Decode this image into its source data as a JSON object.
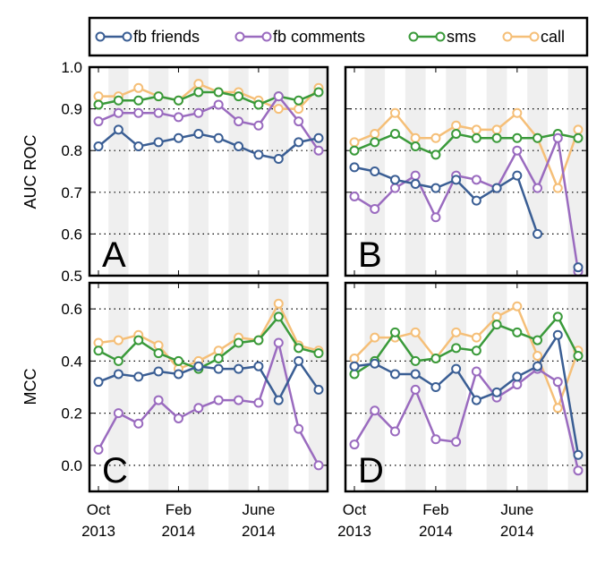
{
  "legend": [
    {
      "name": "fb friends",
      "color": "#3a5e94"
    },
    {
      "name": "fb comments",
      "color": "#9a6bbf"
    },
    {
      "name": "sms",
      "color": "#3a9a3a"
    },
    {
      "name": "call",
      "color": "#f5bf78"
    }
  ],
  "ylabels": {
    "top": "AUC ROC",
    "bottom": "MCC"
  },
  "xticks": [
    {
      "line1": "Oct",
      "line2": "2013"
    },
    {
      "line1": "Feb",
      "line2": "2014"
    },
    {
      "line1": "June",
      "line2": "2014"
    }
  ],
  "chart_data": [
    {
      "panel": "A",
      "type": "line",
      "ylabel": "AUC ROC",
      "ylim": [
        0.5,
        1.0
      ],
      "yticks": [
        "0.5",
        "0.6",
        "0.7",
        "0.8",
        "0.9",
        "1.0"
      ],
      "x": [
        0,
        1,
        2,
        3,
        4,
        5,
        6,
        7,
        8,
        9,
        10,
        11
      ],
      "series": [
        {
          "name": "fb friends",
          "values": [
            0.81,
            0.85,
            0.81,
            0.82,
            0.83,
            0.84,
            0.83,
            0.81,
            0.79,
            0.78,
            0.82,
            0.83
          ]
        },
        {
          "name": "fb comments",
          "values": [
            0.87,
            0.89,
            0.89,
            0.89,
            0.88,
            0.89,
            0.91,
            0.87,
            0.86,
            0.93,
            0.87,
            0.8
          ]
        },
        {
          "name": "sms",
          "values": [
            0.91,
            0.92,
            0.92,
            0.93,
            0.92,
            0.94,
            0.94,
            0.93,
            0.91,
            0.93,
            0.92,
            0.94
          ]
        },
        {
          "name": "call",
          "values": [
            0.93,
            0.93,
            0.95,
            0.93,
            0.92,
            0.96,
            0.94,
            0.94,
            0.92,
            0.9,
            0.9,
            0.95
          ]
        }
      ]
    },
    {
      "panel": "B",
      "type": "line",
      "ylabel": "AUC ROC",
      "ylim": [
        0.5,
        1.0
      ],
      "yticks": [
        "0.5",
        "0.6",
        "0.7",
        "0.8",
        "0.9",
        "1.0"
      ],
      "x": [
        0,
        1,
        2,
        3,
        4,
        5,
        6,
        7,
        8,
        9,
        10,
        11
      ],
      "series": [
        {
          "name": "fb friends",
          "values": [
            0.76,
            0.75,
            0.73,
            0.72,
            0.71,
            0.73,
            0.68,
            0.71,
            0.74,
            0.6,
            null,
            0.52
          ]
        },
        {
          "name": "fb comments",
          "values": [
            0.69,
            0.66,
            0.71,
            0.74,
            0.64,
            0.74,
            0.73,
            0.71,
            0.8,
            0.71,
            0.83,
            0.51
          ]
        },
        {
          "name": "sms",
          "values": [
            0.8,
            0.82,
            0.84,
            0.81,
            0.79,
            0.84,
            0.83,
            0.83,
            0.83,
            0.83,
            0.84,
            0.83
          ]
        },
        {
          "name": "call",
          "values": [
            0.82,
            0.84,
            0.89,
            0.83,
            0.83,
            0.86,
            0.85,
            0.85,
            0.89,
            0.83,
            0.71,
            0.85
          ]
        }
      ]
    },
    {
      "panel": "C",
      "type": "line",
      "ylabel": "MCC",
      "ylim": [
        -0.1,
        0.7
      ],
      "yticks": [
        "0.0",
        "0.2",
        "0.4",
        "0.6"
      ],
      "x": [
        0,
        1,
        2,
        3,
        4,
        5,
        6,
        7,
        8,
        9,
        10,
        11
      ],
      "series": [
        {
          "name": "fb friends",
          "values": [
            0.32,
            0.35,
            0.34,
            0.36,
            0.35,
            0.38,
            0.37,
            0.37,
            0.38,
            0.25,
            0.4,
            0.29
          ]
        },
        {
          "name": "fb comments",
          "values": [
            0.06,
            0.2,
            0.16,
            0.25,
            0.18,
            0.22,
            0.25,
            0.25,
            0.24,
            0.47,
            0.14,
            0.0
          ]
        },
        {
          "name": "sms",
          "values": [
            0.44,
            0.4,
            0.48,
            0.43,
            0.4,
            0.37,
            0.41,
            0.47,
            0.48,
            0.57,
            0.45,
            0.43
          ]
        },
        {
          "name": "call",
          "values": [
            0.47,
            0.48,
            0.5,
            0.46,
            0.37,
            0.4,
            0.44,
            0.49,
            0.48,
            0.62,
            0.46,
            0.44
          ]
        }
      ]
    },
    {
      "panel": "D",
      "type": "line",
      "ylabel": "MCC",
      "ylim": [
        -0.1,
        0.7
      ],
      "yticks": [
        "0.0",
        "0.2",
        "0.4",
        "0.6"
      ],
      "x": [
        0,
        1,
        2,
        3,
        4,
        5,
        6,
        7,
        8,
        9,
        10,
        11
      ],
      "series": [
        {
          "name": "fb friends",
          "values": [
            0.38,
            0.39,
            0.35,
            0.35,
            0.3,
            0.37,
            0.25,
            0.28,
            0.34,
            0.38,
            0.5,
            0.04
          ]
        },
        {
          "name": "fb comments",
          "values": [
            0.08,
            0.21,
            0.13,
            0.29,
            0.1,
            0.09,
            0.36,
            0.26,
            0.31,
            0.37,
            0.32,
            -0.02
          ]
        },
        {
          "name": "sms",
          "values": [
            0.35,
            0.4,
            0.51,
            0.4,
            0.41,
            0.45,
            0.44,
            0.54,
            0.51,
            0.48,
            0.57,
            0.42
          ]
        },
        {
          "name": "call",
          "values": [
            0.41,
            0.49,
            0.49,
            0.51,
            0.41,
            0.51,
            0.49,
            0.57,
            0.61,
            0.42,
            0.22,
            0.44
          ]
        }
      ]
    }
  ]
}
